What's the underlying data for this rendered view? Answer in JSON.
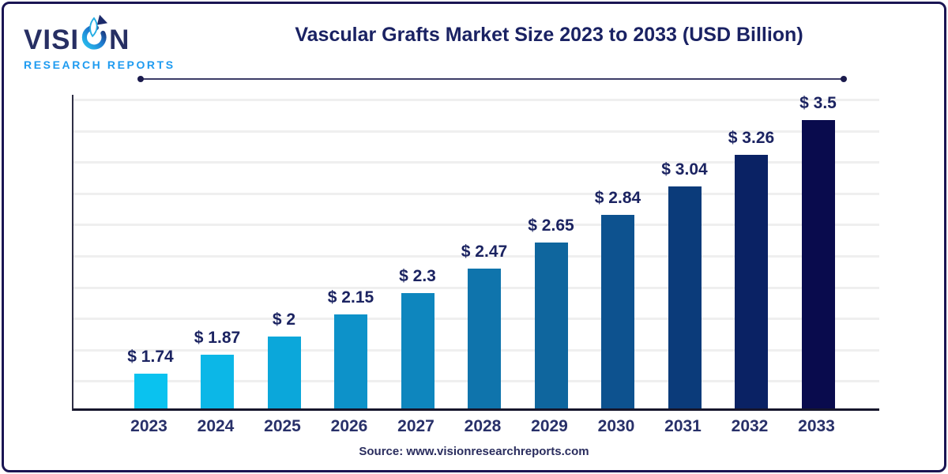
{
  "frame": {
    "border_color": "#1A1553"
  },
  "header": {
    "logo": {
      "wordmark_pre": "VISI",
      "wordmark_post": "N",
      "wordmark_full": "VISION",
      "subtext": "RESEARCH REPORTS",
      "wordmark_color": "#272F63",
      "subtext_color": "#1E9BF0"
    },
    "title": "Vascular Grafts Market Size 2023 to 2033 (USD Billion)",
    "title_color": "#1A2263"
  },
  "footer": {
    "source": "Source: www.visionresearchreports.com"
  },
  "chart_data": {
    "type": "bar",
    "title": "Vascular Grafts Market Size 2023 to 2033 (USD Billion)",
    "unit": "USD Billion",
    "categories": [
      "2023",
      "2024",
      "2025",
      "2026",
      "2027",
      "2028",
      "2029",
      "2030",
      "2031",
      "2032",
      "2033"
    ],
    "values": [
      1.74,
      1.87,
      2,
      2.15,
      2.3,
      2.47,
      2.65,
      2.84,
      3.04,
      3.26,
      3.5
    ],
    "value_labels": [
      "$ 1.74",
      "$ 1.87",
      "$ 2",
      "$ 2.15",
      "$ 2.3",
      "$ 2.47",
      "$ 2.65",
      "$ 2.84",
      "$ 3.04",
      "$ 3.26",
      "$ 3.5"
    ],
    "bar_colors": [
      "#0AC2EF",
      "#0CB7E7",
      "#0BA7DA",
      "#0D92C9",
      "#0E86BE",
      "#0F74AC",
      "#0F669E",
      "#0D528F",
      "#0B3B7A",
      "#0A2264",
      "#090B4D"
    ],
    "y_axis": {
      "baseline_value": 1.5,
      "top_value": 3.69,
      "visible_ticks": false
    },
    "grid": true,
    "gridline_count": 10,
    "gridline_color": "#EFEFEF",
    "axis_color": "#16162C",
    "value_label_color": "#1B2361",
    "tick_label_color": "#283069",
    "legend": "none"
  }
}
